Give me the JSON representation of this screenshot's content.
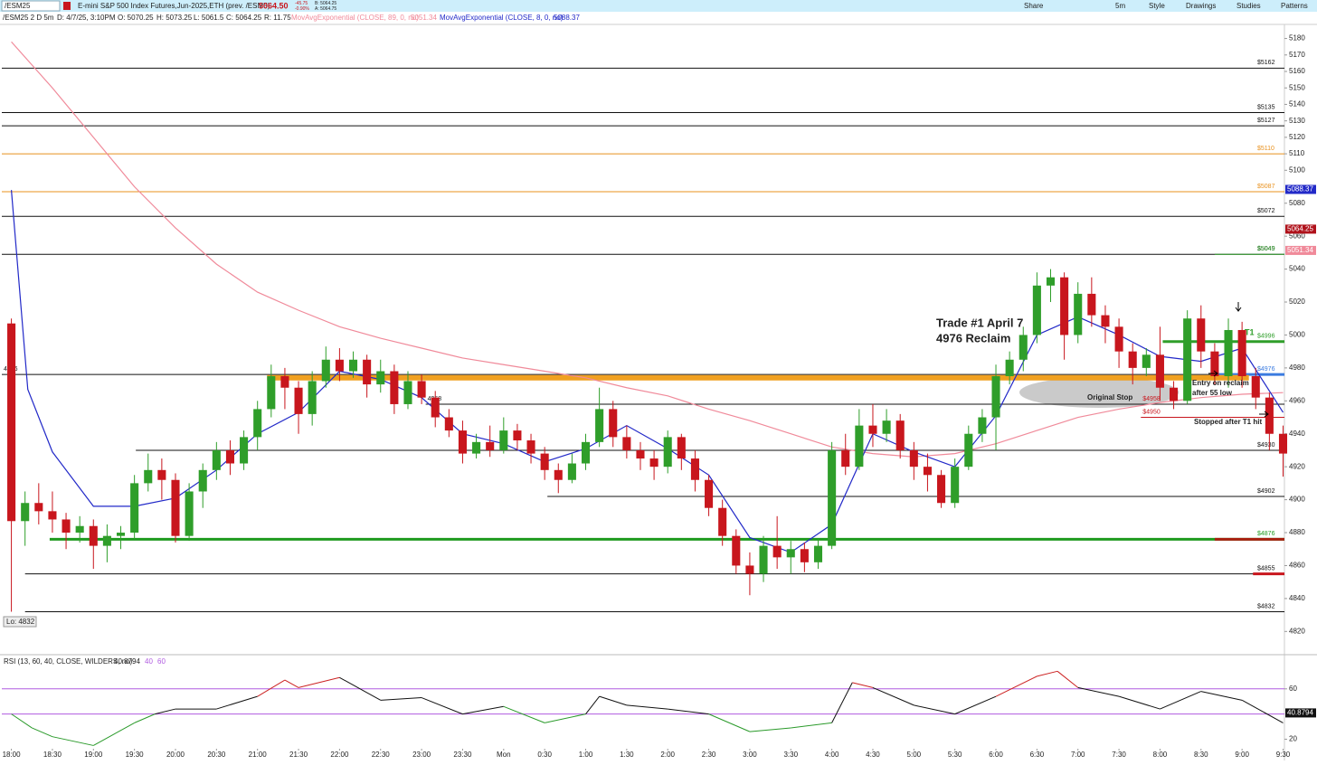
{
  "header": {
    "symbol": "/ESM25",
    "description": "E-mini S&P 500 Index Futures,Jun-2025,ETH (prev. /ESM5)",
    "price": "5064.50",
    "change": "-45.75",
    "change_pct": "-0.90%",
    "bid": "B: 5064.25",
    "ask": "A: 5064.75",
    "buttons": [
      "Share",
      "5m",
      "Style",
      "Drawings",
      "Studies",
      "Patterns"
    ],
    "info": [
      "/ESM25 2 D 5m",
      "D: 4/7/25, 3:10PM",
      "O: 5070.25",
      "H: 5073.25",
      "L: 5061.5",
      "C: 5064.25",
      "R: 11.75"
    ]
  },
  "chart_data": [
    {
      "type": "candlestick",
      "xlim": [
        -7,
        931
      ],
      "ylim": [
        4807,
        5188
      ],
      "yticks": [
        5180,
        5170,
        5160,
        5150,
        5140,
        5130,
        5120,
        5110,
        5100,
        5080,
        5060,
        5040,
        5020,
        5000,
        4980,
        4960,
        4940,
        4920,
        4900,
        4880,
        4860,
        4840,
        4820
      ],
      "grid": false,
      "colors": {
        "up": "#2f9e2a",
        "down": "#c8161d"
      },
      "x": [
        0,
        10,
        20,
        30,
        40,
        50,
        60,
        70,
        80,
        90,
        100,
        110,
        120,
        130,
        140,
        150,
        160,
        170,
        180,
        190,
        200,
        210,
        220,
        230,
        240,
        250,
        260,
        270,
        280,
        290,
        300,
        310,
        320,
        330,
        340,
        350,
        360,
        370,
        380,
        390,
        400,
        410,
        420,
        430,
        440,
        450,
        460,
        470,
        480,
        490,
        500,
        510,
        520,
        530,
        540,
        550,
        560,
        570,
        580,
        590,
        600,
        610,
        620,
        630,
        640,
        650,
        660,
        670,
        680,
        690,
        700,
        710,
        720,
        730,
        740,
        750,
        760,
        770,
        780,
        790,
        800,
        810,
        820,
        830,
        840,
        850,
        860,
        870,
        880,
        890,
        900,
        910,
        920,
        930
      ],
      "open": [
        5007,
        4887,
        4898,
        4893,
        4888,
        4880,
        4884,
        4872,
        4878,
        4880,
        4910,
        4918,
        4912,
        4878,
        4905,
        4918,
        4930,
        4922,
        4938,
        4955,
        4975,
        4968,
        4952,
        4972,
        4985,
        4978,
        4985,
        4970,
        4978,
        4958,
        4972,
        4962,
        4950,
        4942,
        4928,
        4935,
        4930,
        4942,
        4936,
        4928,
        4918,
        4912,
        4922,
        4935,
        4955,
        4938,
        4930,
        4925,
        4920,
        4938,
        4925,
        4912,
        4895,
        4878,
        4860,
        4855,
        4872,
        4865,
        4870,
        4862,
        4872,
        4930,
        4920,
        4945,
        4940,
        4948,
        4930,
        4920,
        4915,
        4898,
        4920,
        4940,
        4950,
        4975,
        4985,
        5000,
        5030,
        5035,
        5000,
        5025,
        5012,
        5005,
        4990,
        4980,
        4988,
        4968,
        4960,
        5010,
        4990,
        4975,
        5003,
        4975,
        4962,
        4940
      ],
      "high": [
        5010,
        4905,
        4910,
        4905,
        4892,
        4890,
        4888,
        4885,
        4884,
        4915,
        4928,
        4925,
        4916,
        4910,
        4922,
        4935,
        4936,
        4942,
        4960,
        4982,
        4980,
        4972,
        4978,
        4993,
        4992,
        4990,
        4988,
        4985,
        4982,
        4978,
        4976,
        4966,
        4955,
        4948,
        4940,
        4945,
        4950,
        4946,
        4940,
        4932,
        4922,
        4928,
        4940,
        4968,
        4960,
        4945,
        4935,
        4930,
        4942,
        4940,
        4930,
        4915,
        4900,
        4882,
        4868,
        4878,
        4890,
        4875,
        4874,
        4876,
        4935,
        4940,
        4955,
        4958,
        4955,
        4952,
        4935,
        4928,
        4918,
        4925,
        4945,
        4955,
        4982,
        4990,
        5005,
        5038,
        5040,
        5038,
        5032,
        5035,
        5018,
        5010,
        4995,
        4992,
        5005,
        4972,
        5015,
        5018,
        4995,
        5010,
        5008,
        4980,
        4965,
        4945
      ],
      "low": [
        4832,
        4872,
        4885,
        4880,
        4870,
        4874,
        4858,
        4862,
        4870,
        4876,
        4905,
        4900,
        4874,
        4875,
        4895,
        4912,
        4915,
        4918,
        4930,
        4950,
        4955,
        4940,
        4945,
        4968,
        4972,
        4974,
        4962,
        4965,
        4952,
        4955,
        4958,
        4944,
        4938,
        4922,
        4925,
        4926,
        4928,
        4930,
        4922,
        4912,
        4904,
        4910,
        4918,
        4932,
        4932,
        4925,
        4918,
        4912,
        4916,
        4918,
        4905,
        4890,
        4872,
        4855,
        4842,
        4850,
        4858,
        4855,
        4856,
        4858,
        4870,
        4915,
        4918,
        4932,
        4935,
        4925,
        4912,
        4905,
        4895,
        4895,
        4918,
        4935,
        4930,
        4970,
        4978,
        4995,
        5020,
        4985,
        4995,
        5005,
        4995,
        4980,
        4970,
        4975,
        4960,
        4955,
        4958,
        4980,
        4970,
        4968,
        4968,
        4955,
        4930,
        4914
      ],
      "close": [
        4887,
        4898,
        4893,
        4888,
        4880,
        4884,
        4872,
        4878,
        4880,
        4910,
        4918,
        4912,
        4878,
        4905,
        4918,
        4930,
        4922,
        4938,
        4955,
        4975,
        4968,
        4952,
        4972,
        4985,
        4978,
        4985,
        4970,
        4978,
        4958,
        4972,
        4962,
        4950,
        4942,
        4928,
        4935,
        4930,
        4942,
        4936,
        4928,
        4918,
        4912,
        4922,
        4935,
        4955,
        4938,
        4930,
        4925,
        4920,
        4938,
        4925,
        4912,
        4895,
        4878,
        4860,
        4855,
        4872,
        4865,
        4870,
        4862,
        4872,
        4930,
        4920,
        4945,
        4940,
        4948,
        4930,
        4920,
        4915,
        4898,
        4920,
        4940,
        4950,
        4975,
        4985,
        5000,
        5030,
        5035,
        5000,
        5025,
        5012,
        5005,
        4990,
        4980,
        4988,
        4968,
        4960,
        5010,
        4990,
        4975,
        5003,
        4975,
        4962,
        4940,
        4928
      ],
      "overlays": [
        {
          "name": "MovAvgExponential (CLOSE, 89, 0, no)",
          "color": "#f08a9a",
          "last": 5051.34,
          "x": [
            0,
            30,
            60,
            90,
            120,
            150,
            180,
            210,
            240,
            270,
            300,
            330,
            360,
            390,
            420,
            450,
            480,
            510,
            540,
            570,
            600,
            630,
            660,
            690,
            720,
            750,
            780,
            810,
            840,
            870,
            900,
            930
          ],
          "values": [
            5178,
            5150,
            5120,
            5090,
            5065,
            5043,
            5026,
            5015,
            5005,
            4998,
            4992,
            4986,
            4982,
            4978,
            4974,
            4968,
            4963,
            4955,
            4948,
            4940,
            4932,
            4928,
            4926,
            4928,
            4934,
            4942,
            4950,
            4955,
            4959,
            4962,
            4964,
            4965
          ]
        },
        {
          "name": "MovAvgExponential (CLOSE, 8, 0, no)",
          "color": "#2229c8",
          "last": 5088.37,
          "x": [
            0,
            12,
            30,
            60,
            90,
            120,
            150,
            180,
            210,
            240,
            270,
            300,
            330,
            360,
            390,
            420,
            450,
            480,
            510,
            540,
            570,
            600,
            630,
            660,
            690,
            720,
            750,
            780,
            810,
            840,
            870,
            900,
            930
          ],
          "values": [
            5088,
            4967,
            4929,
            4896,
            4896,
            4901,
            4918,
            4940,
            4953,
            4978,
            4973,
            4962,
            4940,
            4934,
            4923,
            4931,
            4945,
            4931,
            4915,
            4877,
            4868,
            4885,
            4940,
            4929,
            4920,
            4951,
            5000,
            5011,
            5000,
            4987,
            4984,
            4992,
            4953
          ]
        }
      ],
      "last_price": 5064.25,
      "last_price_color": "#b0121b",
      "low_label": "Lo: 4832",
      "levels": [
        {
          "value": 5162,
          "label": "$5162",
          "color": "#111111",
          "from": -7,
          "style": "thin",
          "label_at": "end"
        },
        {
          "value": 5135,
          "label": "$5135",
          "color": "#111111",
          "from": -7,
          "style": "thin",
          "label_at": "end"
        },
        {
          "value": 5127,
          "label": "$5127",
          "color": "#111111",
          "from": -7,
          "style": "thin",
          "label_at": "end"
        },
        {
          "value": 5110,
          "label": "$5110",
          "color": "#e8901c",
          "from": -7,
          "style": "thin",
          "label_at": "end"
        },
        {
          "value": 5087,
          "label": "$5087",
          "color": "#e8901c",
          "from": -7,
          "style": "thin",
          "label_at": "end"
        },
        {
          "value": 5072,
          "label": "$5072",
          "color": "#111111",
          "from": -7,
          "style": "thin",
          "label_at": "end"
        },
        {
          "value": 5049,
          "label": "$5049",
          "color": "#111111",
          "from": -7,
          "style": "thin",
          "label_at": "end"
        },
        {
          "value": 5049,
          "label": "$5049",
          "color": "#2f9e2a",
          "from": 880,
          "style": "thin",
          "label_at": "end"
        },
        {
          "value": 4996,
          "label": "$4996",
          "color": "#2f9e2a",
          "from": 842,
          "style": "thick",
          "label_at": "end"
        },
        {
          "value": 4976,
          "label": "4976",
          "color": "#111111",
          "from": -7,
          "style": "thin",
          "label_at": "start"
        },
        {
          "value": 4976,
          "label": "$4976",
          "color": "#3a7be0",
          "from": 880,
          "style": "thick",
          "label_at": "end"
        },
        {
          "value": 4974,
          "color": "#f0a020",
          "from": 187,
          "to": 905,
          "style": "band"
        },
        {
          "value": 4958,
          "label": "4958",
          "color": "#111111",
          "from": 303,
          "style": "thin",
          "label_at": "start"
        },
        {
          "value": 4958,
          "label": "$4958",
          "color": "#c8161d",
          "from": 826,
          "style": "none",
          "label_at": "start"
        },
        {
          "value": 4950,
          "label": "$4950",
          "color": "#c8161d",
          "from": 826,
          "style": "thin",
          "label_at": "start"
        },
        {
          "value": 4930,
          "label": "$4930",
          "color": "#111111",
          "from": 91,
          "style": "thin",
          "label_at": "end"
        },
        {
          "value": 4902,
          "label": "$4902",
          "color": "#111111",
          "from": 392,
          "style": "thin",
          "label_at": "end"
        },
        {
          "value": 4876,
          "label": "$4876",
          "color": "#1f9a1f",
          "from": 28,
          "style": "thick",
          "label_at": "end"
        },
        {
          "value": 4876,
          "color": "#a82010",
          "from": 880,
          "style": "thick"
        },
        {
          "value": 4855,
          "label": "$4855",
          "color": "#111111",
          "from": 10,
          "style": "thin",
          "label_at": "end"
        },
        {
          "value": 4855,
          "color": "#c8161d",
          "from": 908,
          "style": "thick"
        },
        {
          "value": 4832,
          "label": "$4832",
          "color": "#111111",
          "from": 10,
          "style": "thin",
          "label_at": "end"
        }
      ],
      "annotations": [
        "Trade #1 April 7",
        "4976 Reclaim",
        "T1",
        "Entry on reclaim",
        "after 55 low",
        "Original Stop",
        "Stopped after T1 hit"
      ]
    },
    {
      "type": "rsi",
      "title": "RSI (13, 60, 40, CLOSE, WILDERS, no)",
      "last": 40.8794,
      "levels": [
        40,
        60
      ],
      "level_color": "#b05ce0",
      "xlim": [
        -7,
        931
      ],
      "ylim": [
        11,
        85
      ],
      "yticks": [
        20,
        60
      ],
      "colors": {
        "above": "#cc2222",
        "below": "#2a9a2a",
        "line": "#111111"
      },
      "xticks": [
        {
          "value": 0,
          "label": "18:00"
        },
        {
          "value": 30,
          "label": "18:30"
        },
        {
          "value": 60,
          "label": "19:00"
        },
        {
          "value": 90,
          "label": "19:30"
        },
        {
          "value": 120,
          "label": "20:00"
        },
        {
          "value": 150,
          "label": "20:30"
        },
        {
          "value": 180,
          "label": "21:00"
        },
        {
          "value": 210,
          "label": "21:30"
        },
        {
          "value": 240,
          "label": "22:00"
        },
        {
          "value": 270,
          "label": "22:30"
        },
        {
          "value": 300,
          "label": "23:00"
        },
        {
          "value": 330,
          "label": "23:30"
        },
        {
          "value": 360,
          "label": "Mon"
        },
        {
          "value": 390,
          "label": "0:30"
        },
        {
          "value": 420,
          "label": "1:00"
        },
        {
          "value": 450,
          "label": "1:30"
        },
        {
          "value": 480,
          "label": "2:00"
        },
        {
          "value": 510,
          "label": "2:30"
        },
        {
          "value": 540,
          "label": "3:00"
        },
        {
          "value": 570,
          "label": "3:30"
        },
        {
          "value": 600,
          "label": "4:00"
        },
        {
          "value": 630,
          "label": "4:30"
        },
        {
          "value": 660,
          "label": "5:00"
        },
        {
          "value": 690,
          "label": "5:30"
        },
        {
          "value": 720,
          "label": "6:00"
        },
        {
          "value": 750,
          "label": "6:30"
        },
        {
          "value": 780,
          "label": "7:00"
        },
        {
          "value": 810,
          "label": "7:30"
        },
        {
          "value": 840,
          "label": "8:00"
        },
        {
          "value": 870,
          "label": "8:30"
        },
        {
          "value": 900,
          "label": "9:00"
        },
        {
          "value": 930,
          "label": "9:30"
        }
      ],
      "x": [
        0,
        15,
        30,
        60,
        90,
        105,
        120,
        150,
        180,
        200,
        210,
        240,
        270,
        300,
        330,
        360,
        390,
        420,
        430,
        450,
        480,
        510,
        540,
        570,
        600,
        615,
        630,
        660,
        690,
        720,
        750,
        765,
        780,
        810,
        840,
        870,
        900,
        930
      ],
      "values": [
        40,
        29,
        22,
        15,
        33,
        40,
        44,
        44,
        54,
        67,
        61,
        69,
        51,
        53,
        40,
        46,
        33,
        40,
        54,
        47,
        44,
        40,
        26,
        29,
        33,
        65,
        61,
        47,
        40,
        54,
        70,
        74,
        61,
        54,
        44,
        58,
        51,
        33
      ]
    }
  ]
}
